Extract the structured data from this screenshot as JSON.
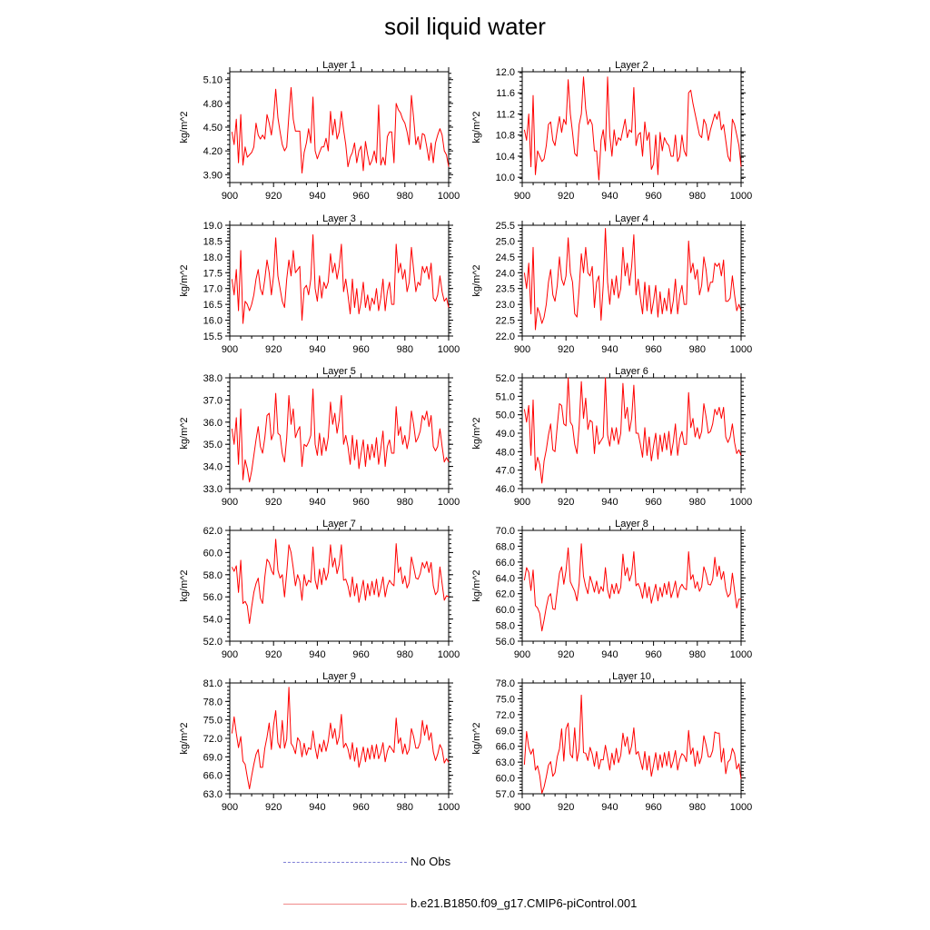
{
  "title": "soil liquid water",
  "colors": {
    "series": "#ff0000",
    "axis": "#000000",
    "obs": "#7f7fd6"
  },
  "legend": {
    "obs_label": "No Obs",
    "run_label": "b.e21.B1850.f09_g17.CMIP6-piControl.001"
  },
  "chart_data": [
    {
      "type": "line",
      "title": "Layer 1",
      "ylabel": "kg/m^2",
      "xlim": [
        900,
        1000
      ],
      "xticks": [
        900,
        920,
        940,
        960,
        980,
        1000
      ],
      "ylim": [
        3.8,
        5.2
      ],
      "yticks": [
        "3.90",
        "4.20",
        "4.50",
        "4.80",
        "5.10"
      ],
      "x_start": 901,
      "x_step": 1,
      "values": [
        4.44,
        4.28,
        4.6,
        4.05,
        4.66,
        4.02,
        4.25,
        4.12,
        4.15,
        4.18,
        4.25,
        4.55,
        4.4,
        4.35,
        4.4,
        4.35,
        4.66,
        4.55,
        4.4,
        4.62,
        4.98,
        4.62,
        4.44,
        4.28,
        4.2,
        4.25,
        4.65,
        5.0,
        4.6,
        4.45,
        4.45,
        4.45,
        3.92,
        4.18,
        4.3,
        4.48,
        4.3,
        4.88,
        4.2,
        4.1,
        4.18,
        4.25,
        4.25,
        4.36,
        4.2,
        4.7,
        4.4,
        4.6,
        4.35,
        4.44,
        4.7,
        4.47,
        4.28,
        4.0,
        4.12,
        4.18,
        4.3,
        4.05,
        4.2,
        4.26,
        3.95,
        4.32,
        4.15,
        4.02,
        4.08,
        4.2,
        4.05,
        4.78,
        4.02,
        4.12,
        4.02,
        4.38,
        4.44,
        4.44,
        4.05,
        4.8,
        4.72,
        4.68,
        4.6,
        4.55,
        4.44,
        4.28,
        4.9,
        4.62,
        4.28,
        4.38,
        4.22,
        4.42,
        4.4,
        4.25,
        4.08,
        4.3,
        4.05,
        4.3,
        4.4,
        4.48,
        4.4,
        4.2,
        4.15,
        4.0
      ]
    },
    {
      "type": "line",
      "title": "Layer 2",
      "ylabel": "kg/m^2",
      "xlim": [
        900,
        1000
      ],
      "xticks": [
        900,
        920,
        940,
        960,
        980,
        1000
      ],
      "ylim": [
        9.9,
        12.0
      ],
      "yticks": [
        "10.0",
        "10.4",
        "10.8",
        "11.2",
        "11.6",
        "12.0"
      ],
      "x_start": 901,
      "x_step": 1,
      "values": [
        10.9,
        10.7,
        11.2,
        10.2,
        11.55,
        10.05,
        10.5,
        10.4,
        10.3,
        10.35,
        10.6,
        11.0,
        11.05,
        10.7,
        10.6,
        10.9,
        11.15,
        10.85,
        11.1,
        11.0,
        11.85,
        11.2,
        10.85,
        10.45,
        10.4,
        11.0,
        11.2,
        11.9,
        11.3,
        11.0,
        11.1,
        11.0,
        10.5,
        10.5,
        9.95,
        10.7,
        10.9,
        10.5,
        11.9,
        10.8,
        10.4,
        10.9,
        10.6,
        10.75,
        10.7,
        10.9,
        11.1,
        10.75,
        10.9,
        10.85,
        11.7,
        10.6,
        10.8,
        10.85,
        10.4,
        11.05,
        10.7,
        10.85,
        10.15,
        10.25,
        10.8,
        10.05,
        10.85,
        10.5,
        10.75,
        10.65,
        10.6,
        10.4,
        10.4,
        10.8,
        10.3,
        10.4,
        10.8,
        10.5,
        10.4,
        11.6,
        11.65,
        11.4,
        11.2,
        11.0,
        10.8,
        10.75,
        11.1,
        11.0,
        10.7,
        10.9,
        11.05,
        11.2,
        11.1,
        11.25,
        10.9,
        11.0,
        10.7,
        10.4,
        10.3,
        11.1,
        11.0,
        10.8,
        10.6,
        10.2
      ]
    },
    {
      "type": "line",
      "title": "Layer 3",
      "ylabel": "kg/m^2",
      "xlim": [
        900,
        1000
      ],
      "xticks": [
        900,
        920,
        940,
        960,
        980,
        1000
      ],
      "ylim": [
        15.5,
        19.0
      ],
      "yticks": [
        "15.5",
        "16.0",
        "16.5",
        "17.0",
        "17.5",
        "18.0",
        "18.5",
        "19.0"
      ],
      "x_start": 901,
      "x_step": 1,
      "values": [
        17.3,
        16.8,
        17.6,
        16.3,
        18.2,
        15.9,
        16.6,
        16.5,
        16.3,
        16.5,
        16.8,
        17.3,
        17.6,
        17.0,
        16.8,
        17.3,
        17.9,
        17.5,
        16.8,
        17.4,
        18.6,
        17.4,
        17.0,
        16.6,
        16.4,
        17.3,
        17.9,
        17.4,
        18.2,
        17.5,
        17.6,
        17.7,
        16.0,
        17.0,
        17.1,
        16.8,
        17.3,
        18.7,
        17.0,
        16.6,
        17.4,
        16.7,
        17.2,
        17.0,
        17.2,
        18.1,
        17.5,
        17.8,
        17.3,
        17.7,
        18.4,
        16.9,
        17.3,
        16.8,
        16.2,
        17.3,
        16.4,
        17.0,
        16.2,
        16.6,
        17.2,
        16.4,
        16.8,
        16.3,
        16.7,
        16.5,
        17.0,
        16.3,
        16.7,
        17.3,
        16.3,
        16.9,
        17.2,
        16.5,
        16.5,
        18.4,
        17.5,
        17.8,
        17.3,
        17.6,
        16.9,
        17.2,
        18.3,
        17.6,
        16.9,
        17.2,
        17.1,
        17.7,
        17.5,
        17.7,
        17.3,
        17.8,
        16.7,
        16.6,
        16.8,
        17.4,
        16.9,
        16.6,
        16.7,
        16.4
      ]
    },
    {
      "type": "line",
      "title": "Layer 4",
      "ylabel": "kg/m^2",
      "xlim": [
        900,
        1000
      ],
      "xticks": [
        900,
        920,
        940,
        960,
        980,
        1000
      ],
      "ylim": [
        22.0,
        25.5
      ],
      "yticks": [
        "22.0",
        "22.5",
        "23.0",
        "23.5",
        "24.0",
        "24.5",
        "25.0",
        "25.5"
      ],
      "x_start": 901,
      "x_step": 1,
      "values": [
        24.0,
        23.5,
        24.3,
        22.7,
        24.8,
        22.2,
        22.9,
        22.7,
        22.4,
        22.6,
        23.0,
        23.7,
        24.1,
        23.3,
        23.1,
        23.6,
        24.5,
        23.8,
        23.6,
        23.9,
        25.1,
        24.0,
        23.7,
        22.7,
        22.6,
        23.5,
        24.6,
        24.0,
        24.8,
        24.0,
        23.9,
        24.2,
        22.9,
        23.7,
        23.9,
        22.5,
        23.6,
        25.4,
        23.7,
        23.0,
        23.8,
        23.3,
        23.9,
        23.2,
        23.5,
        24.8,
        23.9,
        24.3,
        23.6,
        24.2,
        25.2,
        23.3,
        23.8,
        23.2,
        22.7,
        23.7,
        22.8,
        23.6,
        22.7,
        23.1,
        23.6,
        22.6,
        23.4,
        22.7,
        23.2,
        22.8,
        23.5,
        22.7,
        23.1,
        23.8,
        22.7,
        23.3,
        23.6,
        23.0,
        23.0,
        25.0,
        24.0,
        24.3,
        23.8,
        24.1,
        23.3,
        23.6,
        24.5,
        24.1,
        23.4,
        23.7,
        23.7,
        24.3,
        24.2,
        24.3,
        23.9,
        24.4,
        23.1,
        23.1,
        23.2,
        23.9,
        23.3,
        22.8,
        23.0,
        22.8
      ]
    },
    {
      "type": "line",
      "title": "Layer 5",
      "ylabel": "kg/m^2",
      "xlim": [
        900,
        1000
      ],
      "xticks": [
        900,
        920,
        940,
        960,
        980,
        1000
      ],
      "ylim": [
        33.0,
        38.0
      ],
      "yticks": [
        "33.0",
        "34.0",
        "35.0",
        "36.0",
        "37.0",
        "38.0"
      ],
      "x_start": 901,
      "x_step": 1,
      "values": [
        35.7,
        35.0,
        36.2,
        34.1,
        36.6,
        33.4,
        34.3,
        33.9,
        33.3,
        33.8,
        34.5,
        35.2,
        35.8,
        34.9,
        34.6,
        35.3,
        36.3,
        36.4,
        35.2,
        35.5,
        37.3,
        35.5,
        35.4,
        34.6,
        34.2,
        35.3,
        37.2,
        35.9,
        36.6,
        35.3,
        35.6,
        35.8,
        34.0,
        35.0,
        34.9,
        35.1,
        35.4,
        37.5,
        35.0,
        34.5,
        35.5,
        34.5,
        35.3,
        34.7,
        35.3,
        36.9,
        35.9,
        36.4,
        35.5,
        36.1,
        37.2,
        35.0,
        35.4,
        34.9,
        34.1,
        35.4,
        34.3,
        35.2,
        33.9,
        34.6,
        35.2,
        34.0,
        35.0,
        34.3,
        35.0,
        34.4,
        35.3,
        34.1,
        34.8,
        35.6,
        34.0,
        34.9,
        35.2,
        34.6,
        34.6,
        36.7,
        35.4,
        35.8,
        35.0,
        35.4,
        34.8,
        35.3,
        36.5,
        35.9,
        35.1,
        35.3,
        35.6,
        36.3,
        36.1,
        36.5,
        35.8,
        36.3,
        34.9,
        34.7,
        34.9,
        35.7,
        34.9,
        34.2,
        34.4,
        34.2
      ]
    },
    {
      "type": "line",
      "title": "Layer 6",
      "ylabel": "kg/m^2",
      "xlim": [
        900,
        1000
      ],
      "xticks": [
        900,
        920,
        940,
        960,
        980,
        1000
      ],
      "ylim": [
        46.0,
        52.0
      ],
      "yticks": [
        "46.0",
        "47.0",
        "48.0",
        "49.0",
        "50.0",
        "51.0",
        "52.0"
      ],
      "x_start": 901,
      "x_step": 1,
      "values": [
        50.3,
        49.6,
        50.5,
        47.8,
        50.8,
        47.0,
        47.7,
        47.3,
        46.3,
        47.5,
        48.1,
        48.9,
        49.5,
        48.1,
        48.0,
        49.4,
        50.6,
        50.5,
        49.5,
        49.4,
        52.0,
        49.6,
        49.4,
        48.4,
        47.9,
        49.4,
        51.8,
        49.8,
        50.9,
        49.2,
        49.7,
        49.6,
        47.9,
        49.4,
        48.4,
        48.6,
        48.8,
        52.0,
        48.9,
        48.3,
        49.3,
        48.6,
        49.3,
        48.4,
        49.0,
        51.7,
        49.8,
        50.4,
        49.1,
        49.8,
        51.6,
        49.0,
        49.0,
        48.4,
        47.7,
        49.3,
        47.8,
        48.8,
        47.5,
        48.3,
        49.0,
        47.6,
        48.9,
        48.0,
        49.0,
        48.1,
        49.1,
        47.8,
        48.5,
        49.5,
        47.8,
        48.7,
        49.1,
        48.4,
        48.4,
        51.2,
        49.3,
        49.8,
        48.8,
        49.3,
        48.7,
        49.1,
        50.6,
        49.9,
        49.0,
        49.1,
        49.5,
        50.3,
        50.0,
        50.4,
        49.8,
        50.4,
        48.8,
        48.5,
        48.8,
        49.5,
        48.5,
        47.9,
        48.1,
        47.8
      ]
    },
    {
      "type": "line",
      "title": "Layer 7",
      "ylabel": "kg/m^2",
      "xlim": [
        900,
        1000
      ],
      "xticks": [
        900,
        920,
        940,
        960,
        980,
        1000
      ],
      "ylim": [
        52.0,
        62.0
      ],
      "yticks": [
        "52.0",
        "54.0",
        "56.0",
        "58.0",
        "60.0",
        "62.0"
      ],
      "x_start": 901,
      "x_step": 1,
      "values": [
        58.7,
        58.3,
        58.8,
        56.4,
        59.3,
        55.4,
        55.6,
        55.2,
        53.6,
        55.1,
        56.4,
        57.2,
        57.7,
        55.9,
        55.4,
        57.8,
        59.4,
        59.1,
        58.4,
        58.0,
        61.2,
        58.4,
        57.7,
        58.0,
        56.0,
        58.2,
        60.7,
        60.0,
        58.6,
        57.0,
        58.0,
        57.4,
        55.7,
        58.0,
        57.0,
        57.5,
        57.3,
        60.5,
        57.5,
        56.7,
        58.5,
        57.1,
        58.6,
        57.5,
        58.2,
        60.7,
        58.7,
        59.5,
        58.1,
        58.9,
        60.7,
        57.5,
        57.6,
        57.0,
        56.0,
        57.8,
        56.1,
        57.2,
        55.5,
        56.5,
        57.5,
        55.7,
        57.2,
        56.1,
        57.4,
        56.2,
        57.6,
        56.0,
        56.8,
        57.8,
        56.0,
        57.0,
        57.5,
        57.2,
        57.0,
        60.8,
        58.2,
        58.7,
        57.2,
        57.9,
        56.8,
        57.3,
        59.6,
        58.7,
        57.7,
        57.6,
        58.1,
        59.1,
        58.6,
        59.2,
        58.2,
        59.1,
        57.0,
        56.2,
        56.5,
        58.7,
        57.2,
        55.7,
        56.1,
        56.0
      ]
    },
    {
      "type": "line",
      "title": "Layer 8",
      "ylabel": "kg/m^2",
      "xlim": [
        900,
        1000
      ],
      "xticks": [
        900,
        920,
        940,
        960,
        980,
        1000
      ],
      "ylim": [
        56.0,
        70.0
      ],
      "yticks": [
        "56.0",
        "58.0",
        "60.0",
        "62.0",
        "64.0",
        "66.0",
        "68.0",
        "70.0"
      ],
      "x_start": 901,
      "x_step": 1,
      "values": [
        63.7,
        65.3,
        64.7,
        62.4,
        65.0,
        60.5,
        60.2,
        59.5,
        57.3,
        58.7,
        60.3,
        61.6,
        62.0,
        60.1,
        60.0,
        62.4,
        64.6,
        65.4,
        63.2,
        64.9,
        67.8,
        63.5,
        62.9,
        62.3,
        61.1,
        63.3,
        68.3,
        64.2,
        62.9,
        62.0,
        64.2,
        63.3,
        62.2,
        63.6,
        62.0,
        62.9,
        62.3,
        65.3,
        62.5,
        61.4,
        63.2,
        62.0,
        63.3,
        62.0,
        62.8,
        67.0,
        64.3,
        65.3,
        63.6,
        64.5,
        67.3,
        63.0,
        63.3,
        62.6,
        61.4,
        63.4,
        61.5,
        62.9,
        60.8,
        62.0,
        63.2,
        61.1,
        62.8,
        61.6,
        63.3,
        61.9,
        63.5,
        61.5,
        62.4,
        63.6,
        61.5,
        62.7,
        63.2,
        62.7,
        62.5,
        67.3,
        63.8,
        64.4,
        62.7,
        63.5,
        62.3,
        62.9,
        65.4,
        64.5,
        63.2,
        63.1,
        63.8,
        66.6,
        64.2,
        65.5,
        63.8,
        64.8,
        62.6,
        61.6,
        62.0,
        64.6,
        62.4,
        60.2,
        61.3,
        61.3
      ]
    },
    {
      "type": "line",
      "title": "Layer 9",
      "ylabel": "kg/m^2",
      "xlim": [
        900,
        1000
      ],
      "xticks": [
        900,
        920,
        940,
        960,
        980,
        1000
      ],
      "ylim": [
        63.0,
        81.0
      ],
      "yticks": [
        "63.0",
        "66.0",
        "69.0",
        "72.0",
        "75.0",
        "78.0",
        "81.0"
      ],
      "x_start": 901,
      "x_step": 1,
      "values": [
        72.8,
        75.5,
        72.8,
        70.5,
        72.3,
        68.3,
        67.8,
        65.7,
        63.8,
        65.9,
        67.8,
        69.4,
        70.2,
        67.3,
        67.3,
        70.4,
        72.2,
        74.5,
        70.2,
        74.1,
        76.5,
        71.3,
        70.4,
        74.9,
        70.4,
        71.9,
        80.3,
        71.2,
        70.6,
        69.5,
        72.1,
        71.5,
        69.0,
        71.2,
        69.3,
        70.5,
        70.2,
        73.2,
        70.5,
        68.7,
        71.1,
        69.8,
        71.7,
        69.9,
        71.5,
        74.5,
        72.0,
        73.6,
        71.0,
        72.3,
        75.9,
        70.5,
        71.2,
        70.3,
        68.6,
        71.3,
        68.3,
        70.5,
        67.3,
        68.8,
        70.6,
        68.2,
        70.4,
        68.6,
        70.9,
        68.7,
        71.0,
        68.7,
        69.7,
        71.3,
        68.2,
        69.9,
        70.8,
        70.3,
        69.7,
        75.3,
        71.2,
        72.1,
        69.5,
        71.1,
        69.4,
        70.2,
        73.6,
        72.3,
        70.4,
        70.4,
        71.4,
        74.9,
        72.5,
        74.2,
        71.7,
        72.9,
        69.8,
        68.4,
        69.4,
        71.0,
        70.2,
        68.0,
        68.7,
        68.1
      ]
    },
    {
      "type": "line",
      "title": "Layer 10",
      "ylabel": "kg/m^2",
      "xlim": [
        900,
        1000
      ],
      "xticks": [
        900,
        920,
        940,
        960,
        980,
        1000
      ],
      "ylim": [
        57.0,
        78.0
      ],
      "yticks": [
        "57.0",
        "60.0",
        "63.0",
        "66.0",
        "69.0",
        "72.0",
        "75.0",
        "78.0"
      ],
      "x_start": 901,
      "x_step": 1,
      "values": [
        62.5,
        68.8,
        65.8,
        64.5,
        65.5,
        61.5,
        62.3,
        60.4,
        57.1,
        58.3,
        60.2,
        62.4,
        63.1,
        60.3,
        61.0,
        64.0,
        65.5,
        69.3,
        63.2,
        69.3,
        70.4,
        64.5,
        63.8,
        69.5,
        63.2,
        65.5,
        75.7,
        64.8,
        64.7,
        63.3,
        65.8,
        64.5,
        62.2,
        65.0,
        61.7,
        63.5,
        63.4,
        66.2,
        63.9,
        61.5,
        64.7,
        62.5,
        65.6,
        62.9,
        64.3,
        68.5,
        66.0,
        67.8,
        64.5,
        66.1,
        69.5,
        64.5,
        65.0,
        63.3,
        61.6,
        65.0,
        61.5,
        64.2,
        60.3,
        62.4,
        64.8,
        61.5,
        64.4,
        62.0,
        64.8,
        62.3,
        65.0,
        61.9,
        63.2,
        65.2,
        61.5,
        63.5,
        64.6,
        64.2,
        63.1,
        69.0,
        64.5,
        65.7,
        62.2,
        65.1,
        62.7,
        64.0,
        68.0,
        66.3,
        64.0,
        64.0,
        65.2,
        68.7,
        68.5,
        68.5,
        63.0,
        65.6,
        60.8,
        63.0,
        63.5,
        65.6,
        64.6,
        61.7,
        62.7,
        59.8
      ]
    }
  ]
}
